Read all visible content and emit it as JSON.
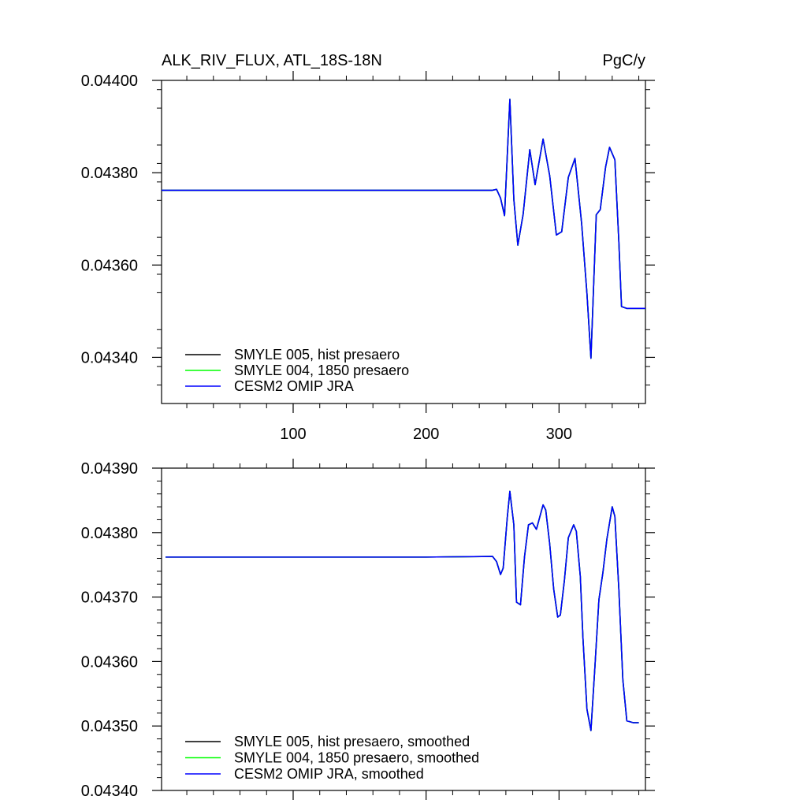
{
  "chart_data": [
    {
      "type": "line",
      "title": "ALK_RIV_FLUX, ATL_18S-18N",
      "units_label": "PgC/y",
      "xlim": [
        1,
        365
      ],
      "ylim": [
        0.0433,
        0.044
      ],
      "xticks": [
        100,
        200,
        300
      ],
      "yticks": [
        0.0434,
        0.0436,
        0.0438,
        0.044
      ],
      "ytick_labels": [
        "0.04340",
        "0.04360",
        "0.04380",
        "0.04400"
      ],
      "grid": false,
      "legend_position": "bottom-left",
      "series": [
        {
          "name": "SMYLE 005, hist presaero",
          "color": "#000000",
          "x": [
            1,
            100,
            200,
            250,
            253,
            256,
            259,
            263,
            266,
            269,
            273,
            278,
            282,
            288,
            293,
            298,
            302,
            307,
            312,
            317,
            321,
            324,
            328,
            331,
            335,
            338,
            342,
            345,
            347,
            351,
            365
          ],
          "y": [
            0.043762,
            0.043762,
            0.043762,
            0.043762,
            0.043764,
            0.043745,
            0.043707,
            0.043959,
            0.043742,
            0.043643,
            0.04371,
            0.04385,
            0.043774,
            0.043873,
            0.043793,
            0.043665,
            0.043672,
            0.04379,
            0.043831,
            0.04369,
            0.043538,
            0.043398,
            0.043709,
            0.04372,
            0.043812,
            0.043855,
            0.043828,
            0.04365,
            0.04351,
            0.043506,
            0.043506
          ]
        },
        {
          "name": "SMYLE 004, 1850 presaero",
          "color": "#00ff00",
          "x": [
            1,
            100,
            200,
            250,
            253,
            256,
            259,
            263,
            266,
            269,
            273,
            278,
            282,
            288,
            293,
            298,
            302,
            307,
            312,
            317,
            321,
            324,
            328,
            331,
            335,
            338,
            342,
            345,
            347,
            351,
            365
          ],
          "y": [
            0.043762,
            0.043762,
            0.043762,
            0.043762,
            0.043764,
            0.043745,
            0.043707,
            0.043959,
            0.043742,
            0.043643,
            0.04371,
            0.04385,
            0.043774,
            0.043873,
            0.043793,
            0.043665,
            0.043672,
            0.04379,
            0.043831,
            0.04369,
            0.043538,
            0.043398,
            0.043709,
            0.04372,
            0.043812,
            0.043855,
            0.043828,
            0.04365,
            0.04351,
            0.043506,
            0.043506
          ]
        },
        {
          "name": "CESM2 OMIP JRA",
          "color": "#0000ff",
          "x": [
            1,
            100,
            200,
            250,
            253,
            256,
            259,
            263,
            266,
            269,
            273,
            278,
            282,
            288,
            293,
            298,
            302,
            307,
            312,
            317,
            321,
            324,
            328,
            331,
            335,
            338,
            342,
            345,
            347,
            351,
            365
          ],
          "y": [
            0.043762,
            0.043762,
            0.043762,
            0.043762,
            0.043764,
            0.043745,
            0.043707,
            0.043959,
            0.043742,
            0.043643,
            0.04371,
            0.04385,
            0.043774,
            0.043873,
            0.043793,
            0.043665,
            0.043672,
            0.04379,
            0.043831,
            0.04369,
            0.043538,
            0.043398,
            0.043709,
            0.04372,
            0.043812,
            0.043855,
            0.043828,
            0.04365,
            0.04351,
            0.043506,
            0.043506
          ]
        }
      ]
    },
    {
      "type": "line",
      "title": "",
      "xlim": [
        1,
        365
      ],
      "ylim": [
        0.0434,
        0.0439
      ],
      "xticks": [
        100,
        200,
        300
      ],
      "yticks": [
        0.0434,
        0.0435,
        0.0436,
        0.0437,
        0.0438,
        0.0439
      ],
      "ytick_labels": [
        "0.04340",
        "0.04350",
        "0.04360",
        "0.04370",
        "0.04380",
        "0.04390"
      ],
      "grid": false,
      "legend_position": "bottom-left",
      "series": [
        {
          "name": "SMYLE 005, hist presaero, smoothed",
          "color": "#000000",
          "x": [
            4,
            100,
            200,
            250,
            253,
            256,
            258,
            261,
            263,
            266,
            268,
            271,
            274,
            277,
            280,
            283,
            286,
            288,
            290,
            293,
            296,
            299,
            301,
            304,
            307,
            311,
            313,
            316,
            318,
            321,
            324,
            327,
            330,
            333,
            336,
            340,
            342,
            345,
            348,
            351,
            356,
            360
          ],
          "y": [
            0.043762,
            0.043762,
            0.043762,
            0.043763,
            0.043755,
            0.043735,
            0.043745,
            0.043822,
            0.043864,
            0.043812,
            0.043692,
            0.043688,
            0.043762,
            0.043812,
            0.043815,
            0.043805,
            0.043828,
            0.043843,
            0.043835,
            0.043782,
            0.043712,
            0.043669,
            0.043672,
            0.043725,
            0.043792,
            0.043812,
            0.043802,
            0.043732,
            0.043636,
            0.043526,
            0.043493,
            0.043592,
            0.043696,
            0.043738,
            0.04379,
            0.04384,
            0.043825,
            0.043712,
            0.043572,
            0.043508,
            0.043505,
            0.043505
          ]
        },
        {
          "name": "SMYLE 004, 1850 presaero, smoothed",
          "color": "#00ff00",
          "x": [
            4,
            100,
            200,
            250,
            253,
            256,
            258,
            261,
            263,
            266,
            268,
            271,
            274,
            277,
            280,
            283,
            286,
            288,
            290,
            293,
            296,
            299,
            301,
            304,
            307,
            311,
            313,
            316,
            318,
            321,
            324,
            327,
            330,
            333,
            336,
            340,
            342,
            345,
            348,
            351,
            356,
            360
          ],
          "y": [
            0.043762,
            0.043762,
            0.043762,
            0.043763,
            0.043755,
            0.043735,
            0.043745,
            0.043822,
            0.043864,
            0.043812,
            0.043692,
            0.043688,
            0.043762,
            0.043812,
            0.043815,
            0.043805,
            0.043828,
            0.043843,
            0.043835,
            0.043782,
            0.043712,
            0.043669,
            0.043672,
            0.043725,
            0.043792,
            0.043812,
            0.043802,
            0.043732,
            0.043636,
            0.043526,
            0.043493,
            0.043592,
            0.043696,
            0.043738,
            0.04379,
            0.04384,
            0.043825,
            0.043712,
            0.043572,
            0.043508,
            0.043505,
            0.043505
          ]
        },
        {
          "name": "CESM2 OMIP JRA, smoothed",
          "color": "#0000ff",
          "x": [
            4,
            100,
            200,
            250,
            253,
            256,
            258,
            261,
            263,
            266,
            268,
            271,
            274,
            277,
            280,
            283,
            286,
            288,
            290,
            293,
            296,
            299,
            301,
            304,
            307,
            311,
            313,
            316,
            318,
            321,
            324,
            327,
            330,
            333,
            336,
            340,
            342,
            345,
            348,
            351,
            356,
            360
          ],
          "y": [
            0.043762,
            0.043762,
            0.043762,
            0.043763,
            0.043755,
            0.043735,
            0.043745,
            0.043822,
            0.043864,
            0.043812,
            0.043692,
            0.043688,
            0.043762,
            0.043812,
            0.043815,
            0.043805,
            0.043828,
            0.043843,
            0.043835,
            0.043782,
            0.043712,
            0.043669,
            0.043672,
            0.043725,
            0.043792,
            0.043812,
            0.043802,
            0.043732,
            0.043636,
            0.043526,
            0.043493,
            0.043592,
            0.043696,
            0.043738,
            0.04379,
            0.04384,
            0.043825,
            0.043712,
            0.043572,
            0.043508,
            0.043505,
            0.043505
          ]
        }
      ]
    }
  ]
}
